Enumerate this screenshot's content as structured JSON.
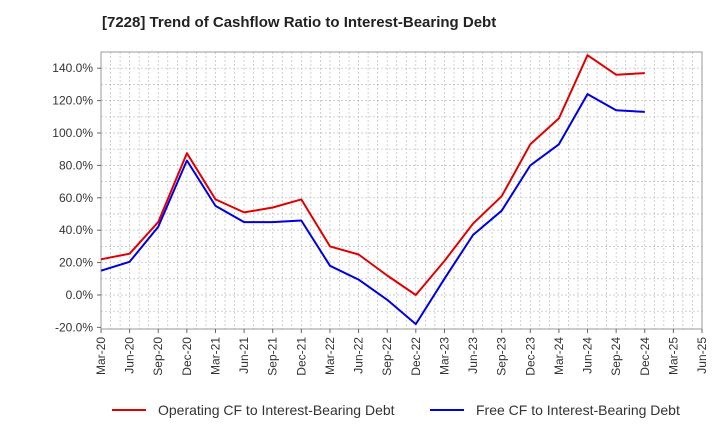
{
  "chart_data": {
    "type": "line",
    "title": "[7228]  Trend of Cashflow Ratio to Interest-Bearing Debt",
    "xlabel": "",
    "ylabel": "",
    "x_tick_labels": [
      "Mar-20",
      "Jun-20",
      "Sep-20",
      "Dec-20",
      "Mar-21",
      "Jun-21",
      "Sep-21",
      "Dec-21",
      "Mar-22",
      "Jun-22",
      "Sep-22",
      "Dec-22",
      "Mar-23",
      "Jun-23",
      "Sep-23",
      "Dec-23",
      "Mar-24",
      "Jun-24",
      "Sep-24",
      "Dec-24",
      "Mar-25",
      "Jun-25"
    ],
    "y_ticks": [
      -20,
      0,
      20,
      40,
      60,
      80,
      100,
      120,
      140
    ],
    "y_tick_labels": [
      "-20.0%",
      "0.0%",
      "20.0%",
      "40.0%",
      "60.0%",
      "80.0%",
      "100.0%",
      "120.0%",
      "140.0%"
    ],
    "ylim": [
      -21,
      150
    ],
    "grid": true,
    "legend_position": "bottom",
    "series": [
      {
        "name": "Operating CF to Interest-Bearing Debt",
        "color": "#e00000",
        "values": [
          22,
          25.5,
          45,
          87.5,
          59,
          51,
          54,
          59,
          30,
          25,
          12,
          0,
          21,
          44,
          61,
          93,
          109,
          148,
          136,
          137
        ]
      },
      {
        "name": "Free CF to Interest-Bearing Debt",
        "color": "#0000e0",
        "values": [
          15,
          20.5,
          42,
          83,
          55,
          45,
          45,
          46,
          18,
          9.5,
          -3,
          -18,
          10,
          37,
          52,
          80,
          93,
          124,
          114,
          113
        ]
      }
    ]
  }
}
